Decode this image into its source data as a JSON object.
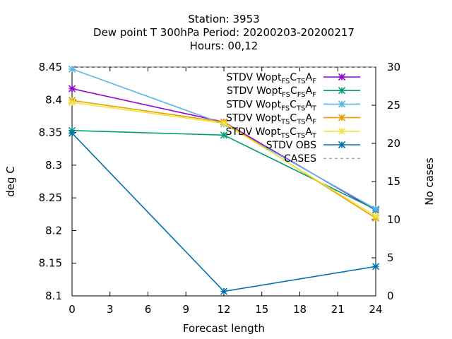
{
  "chart_data": {
    "type": "line",
    "title_lines": [
      "Station:     3953",
      "Dew point T 300hPa   Period: 20200203-20200217",
      "Hours:  00,12"
    ],
    "xlabel": "Forecast length",
    "ylabel": "deg C",
    "y2label": "No cases",
    "xlim": [
      0,
      24
    ],
    "ylim": [
      8.1,
      8.45
    ],
    "y2lim": [
      0,
      30
    ],
    "xticks": [
      "0",
      "3",
      "6",
      "9",
      "12",
      "15",
      "18",
      "21",
      "24"
    ],
    "yticks": [
      "8.1",
      "8.15",
      "8.2",
      "8.25",
      "8.3",
      "8.35",
      "8.4",
      "8.45"
    ],
    "y2ticks": [
      "0",
      "5",
      "10",
      "15",
      "20",
      "25",
      "30"
    ],
    "grid": false,
    "legend_position": "top-right",
    "x": [
      0,
      12,
      24
    ],
    "series": [
      {
        "legend": {
          "prefix": "STDV Wopt",
          "parts": [
            [
              "FS",
              "C"
            ],
            [
              "TS",
              "A"
            ],
            [
              "F",
              ""
            ]
          ]
        },
        "color": "#9400d3",
        "values": [
          8.417,
          8.366,
          8.231
        ],
        "axis": "y1"
      },
      {
        "legend": {
          "prefix": "STDV Wopt",
          "parts": [
            [
              "FS",
              "C"
            ],
            [
              "FS",
              "A"
            ],
            [
              "F",
              ""
            ]
          ]
        },
        "color": "#009e73",
        "values": [
          8.353,
          8.346,
          8.232
        ],
        "axis": "y1"
      },
      {
        "legend": {
          "prefix": "STDV Wopt",
          "parts": [
            [
              "FS",
              "C"
            ],
            [
              "TS",
              "A"
            ],
            [
              "T",
              ""
            ]
          ]
        },
        "color": "#56b4e9",
        "values": [
          8.447,
          8.363,
          8.233
        ],
        "axis": "y1"
      },
      {
        "legend": {
          "prefix": "STDV Wopt",
          "parts": [
            [
              "TS",
              "C"
            ],
            [
              "TS",
              "A"
            ],
            [
              "F",
              ""
            ]
          ]
        },
        "color": "#e69f00",
        "values": [
          8.399,
          8.366,
          8.219
        ],
        "axis": "y1"
      },
      {
        "legend": {
          "prefix": "STDV Wopt",
          "parts": [
            [
              "TS",
              "C"
            ],
            [
              "TS",
              "A"
            ],
            [
              "T",
              ""
            ]
          ]
        },
        "color": "#f0e442",
        "values": [
          8.396,
          8.364,
          8.222
        ],
        "axis": "y1"
      },
      {
        "legend": {
          "prefix": "STDV OBS",
          "parts": []
        },
        "color": "#0072b2",
        "values": [
          8.349,
          8.107,
          8.145
        ],
        "axis": "y1"
      },
      {
        "legend": {
          "prefix": "CASES",
          "parts": []
        },
        "color": "#808080",
        "dashed": true,
        "values": [
          30,
          30,
          30
        ],
        "axis": "y2"
      }
    ]
  }
}
